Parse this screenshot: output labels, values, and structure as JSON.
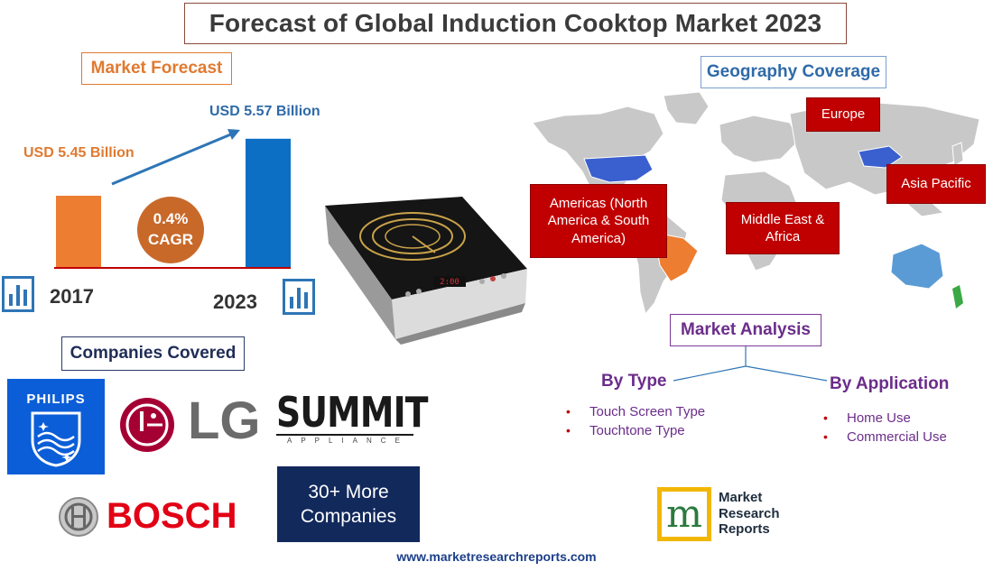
{
  "title": "Forecast of Global Induction Cooktop Market 2023",
  "market_forecast": {
    "heading": "Market Forecast",
    "cagr_value": "0.4%",
    "cagr_label": "CAGR",
    "bar_colors": [
      "#ed7d31",
      "#0d6fc4"
    ]
  },
  "chart_data": {
    "type": "bar",
    "categories": [
      "2017",
      "2023"
    ],
    "values": [
      5.45,
      5.57
    ],
    "value_labels": [
      "USD 5.45 Billion",
      "USD 5.57 Billion"
    ],
    "title": "",
    "xlabel": "",
    "ylabel": ""
  },
  "geography": {
    "heading": "Geography Coverage",
    "regions": [
      "Europe",
      "Asia Pacific",
      "Americas (North America & South America)",
      "Middle East & Africa"
    ]
  },
  "companies": {
    "heading": "Companies Covered",
    "logos": [
      "PHILIPS",
      "LG",
      "SUMMIT",
      "APPLIANCE",
      "BOSCH"
    ],
    "more": "30+ More Companies"
  },
  "market_analysis": {
    "heading": "Market Analysis",
    "by_type": {
      "heading": "By Type",
      "items": [
        "Touch Screen Type",
        "Touchtone Type"
      ]
    },
    "by_application": {
      "heading": "By Application",
      "items": [
        "Home Use",
        "Commercial Use"
      ]
    }
  },
  "brand": {
    "line1": "Market",
    "line2": "Research",
    "line3": "Reports"
  },
  "footer_url": "www.marketresearchreports.com",
  "product_display": "2:00"
}
